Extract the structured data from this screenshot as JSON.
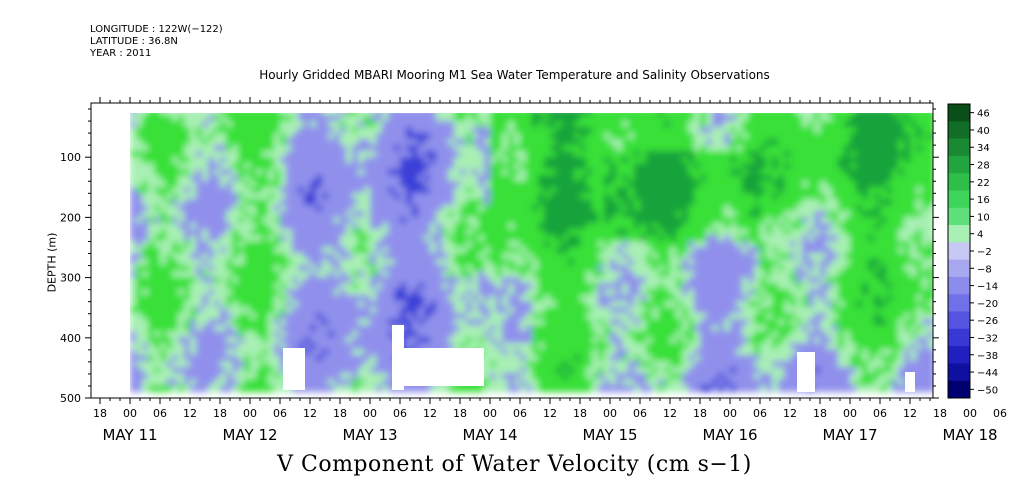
{
  "header": {
    "longitude": "LONGITUDE : 122W(−122)",
    "latitude": "LATITUDE : 36.8N",
    "year": "YEAR : 2011"
  },
  "chart_data": {
    "type": "heatmap",
    "title": "Hourly Gridded MBARI Mooring M1 Sea Water Temperature and Salinity Observations",
    "xlabel": "",
    "ylabel": "DEPTH (m)",
    "footer_label": "V Component of Water Velocity (cm s−1)",
    "y_ticks": [
      "100",
      "200",
      "300",
      "400",
      "500"
    ],
    "ylim": [
      500,
      10
    ],
    "x_hour_ticks": [
      "18",
      "00",
      "06",
      "12",
      "18",
      "00",
      "06",
      "12",
      "18",
      "00",
      "06",
      "12",
      "18",
      "00",
      "06",
      "12",
      "18",
      "00",
      "06",
      "12",
      "18",
      "00",
      "06",
      "12",
      "18",
      "00",
      "06",
      "12",
      "18",
      "00",
      "06",
      "12"
    ],
    "x_date_labels": [
      "MAY 11",
      "MAY 12",
      "MAY 13",
      "MAY 14",
      "MAY 15",
      "MAY 16",
      "MAY 17",
      "MAY 18"
    ],
    "colorbar_labels": [
      "46",
      "40",
      "34",
      "28",
      "22",
      "16",
      "10",
      "4",
      "−2",
      "−8",
      "−14",
      "−20",
      "−26",
      "−32",
      "−38",
      "−44",
      "−50"
    ],
    "colorbar_colors": [
      "#0a4f1a",
      "#126e26",
      "#1a8a32",
      "#22a53e",
      "#2dbf4a",
      "#3fd45c",
      "#5fe07a",
      "#a8f0b4",
      "#c8c8f4",
      "#a8a8f0",
      "#8c8cec",
      "#7070e8",
      "#5454e0",
      "#3838d4",
      "#2020c0",
      "#1010a0",
      "#000070"
    ],
    "time_range": [
      "2011-05-11T00:00",
      "2011-05-18T12:00"
    ],
    "depth_range": [
      20,
      480
    ],
    "colors": {
      "positive": "#38e038",
      "weak": "#a8f0b4",
      "negative": "#9090ec",
      "strong_negative": "#3a40d8",
      "strong_positive": "#16a33a"
    }
  }
}
